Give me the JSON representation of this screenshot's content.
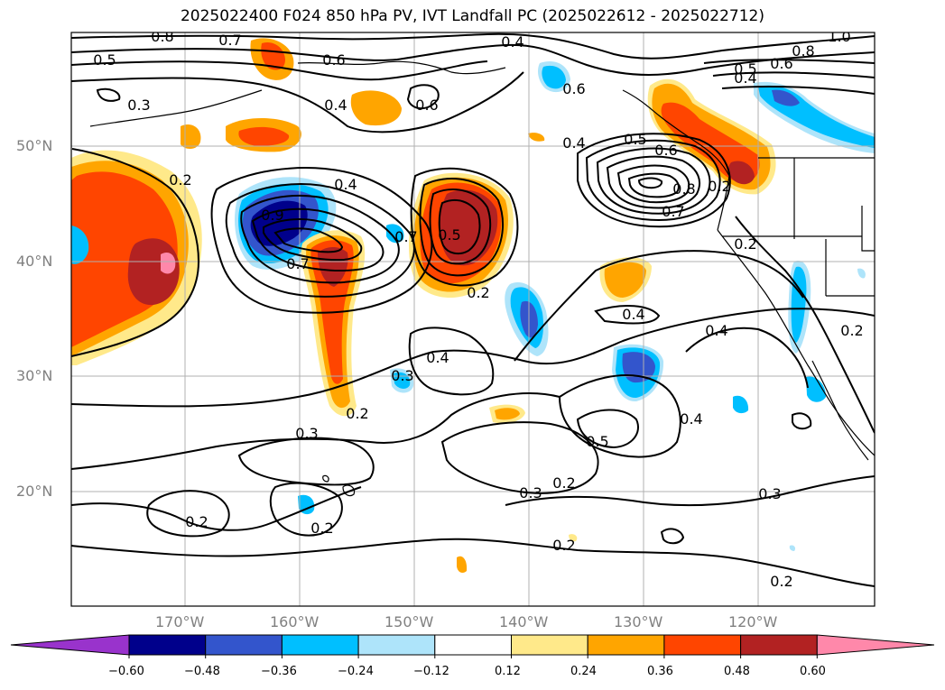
{
  "title": "2025022400 F024 850 hPa PV, IVT Landfall PC (2025022612 - 2025022712)",
  "latitude_labels": [
    "50°N",
    "40°N",
    "30°N",
    "20°N"
  ],
  "longitude_labels": [
    "170°W",
    "160°W",
    "150°W",
    "140°W",
    "130°W",
    "120°W"
  ],
  "colorbar": {
    "ticks": [
      "−0.60",
      "−0.48",
      "−0.36",
      "−0.24",
      "−0.12",
      "0.12",
      "0.24",
      "0.36",
      "0.48",
      "0.60"
    ],
    "colors": [
      "#9933cc",
      "#00008b",
      "#3355cc",
      "#00bfff",
      "#aee4fa",
      "#ffffff",
      "#ffe98a",
      "#ffa500",
      "#ff4500",
      "#b22222",
      "#ff88aa"
    ]
  },
  "contour_labels": [
    {
      "text": "0.8"
    },
    {
      "text": "0.7"
    },
    {
      "text": "0.5"
    },
    {
      "text": "0.6"
    },
    {
      "text": "0.4"
    },
    {
      "text": "1.0"
    },
    {
      "text": "0.8"
    },
    {
      "text": "0.6"
    },
    {
      "text": "0.5"
    },
    {
      "text": "0.4"
    },
    {
      "text": "0.3"
    },
    {
      "text": "0.4"
    },
    {
      "text": "0.6"
    },
    {
      "text": "0.6"
    },
    {
      "text": "0.2"
    },
    {
      "text": "0.4"
    },
    {
      "text": "0.5"
    },
    {
      "text": "0.6"
    },
    {
      "text": "0.2"
    },
    {
      "text": "0.4"
    },
    {
      "text": "0.9"
    },
    {
      "text": "0.7"
    },
    {
      "text": "0.5"
    },
    {
      "text": "0.7"
    },
    {
      "text": "0.8"
    },
    {
      "text": "0.7"
    },
    {
      "text": "0.2"
    },
    {
      "text": "0.2"
    },
    {
      "text": "0.4"
    },
    {
      "text": "0.4"
    },
    {
      "text": "0.2"
    },
    {
      "text": "0.4"
    },
    {
      "text": "0.3"
    },
    {
      "text": "0.2"
    },
    {
      "text": "0.4"
    },
    {
      "text": "0.5"
    },
    {
      "text": "0.3"
    },
    {
      "text": "0.3"
    },
    {
      "text": "0.2"
    },
    {
      "text": "0.3"
    },
    {
      "text": "0.2"
    },
    {
      "text": "0.2"
    },
    {
      "text": "0.2"
    },
    {
      "text": "0.2"
    }
  ],
  "chart_data": {
    "type": "heatmap",
    "title": "2025022400 F024 850 hPa PV, IVT Landfall PC (2025022612 - 2025022712)",
    "xlabel": "",
    "ylabel": "",
    "x_ticks": [
      "170°W",
      "160°W",
      "150°W",
      "140°W",
      "130°W",
      "120°W"
    ],
    "y_ticks": [
      "50°N",
      "40°N",
      "30°N",
      "20°N"
    ],
    "xlim": [
      -180,
      -110
    ],
    "ylim": [
      10,
      60
    ],
    "grid": true,
    "colorbar_levels": [
      -0.6,
      -0.48,
      -0.36,
      -0.24,
      -0.12,
      0.12,
      0.24,
      0.36,
      0.48,
      0.6
    ],
    "contour_levels_shown": [
      0.2,
      0.3,
      0.4,
      0.5,
      0.6,
      0.7,
      0.8,
      0.9,
      1.0
    ]
  }
}
